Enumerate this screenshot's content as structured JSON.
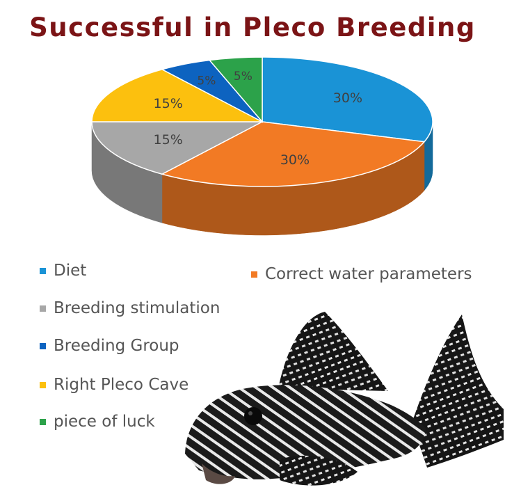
{
  "chart_data": {
    "type": "pie",
    "title": "Successful in Pleco Breeding",
    "series": [
      {
        "name": "Diet",
        "value": 30,
        "label": "30%",
        "color": "#1a93d6"
      },
      {
        "name": "Correct water parameters",
        "value": 30,
        "label": "30%",
        "color": "#f27a24"
      },
      {
        "name": "Breeding stimulation",
        "value": 15,
        "label": "15%",
        "color": "#a7a7a7"
      },
      {
        "name": "Right Pleco Cave",
        "value": 15,
        "label": "15%",
        "color": "#fcc00e"
      },
      {
        "name": "Breeding Group",
        "value": 5,
        "label": "5%",
        "color": "#0d63c0"
      },
      {
        "name": "piece of luck",
        "value": 5,
        "label": "5%",
        "color": "#2ca24a"
      }
    ],
    "legend_placement": "bottom-left"
  },
  "legend": [
    {
      "name": "Diet",
      "color": "#1a93d6"
    },
    {
      "name": "Correct water parameters",
      "color": "#f27a24"
    },
    {
      "name": "Breeding stimulation",
      "color": "#a7a7a7"
    },
    {
      "name": "Breeding Group",
      "color": "#0d63c0"
    },
    {
      "name": "Right Pleco Cave",
      "color": "#fcc00e"
    },
    {
      "name": "piece of luck",
      "color": "#2ca24a"
    }
  ],
  "image": {
    "subject": "pleco-fish"
  }
}
